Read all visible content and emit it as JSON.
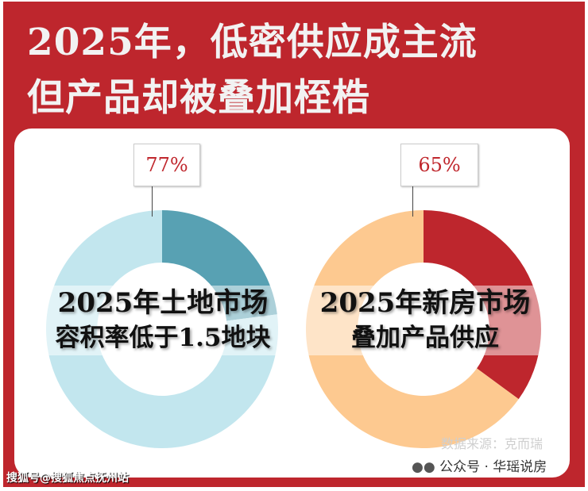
{
  "header": {
    "title_line1": "2025年，低密供应成主流",
    "title_line2": "但产品却被叠加桎梏"
  },
  "chart_data": [
    {
      "type": "pie",
      "variant": "donut",
      "title": "2025年土地市场容积率低于1.5地块",
      "title_line1": "2025年土地市场",
      "title_line2": "容积率低于1.5地块",
      "value_label": "77%",
      "values": [
        77,
        23
      ],
      "highlight": 77,
      "colors": [
        "#c2e6ee",
        "#58a1b3"
      ]
    },
    {
      "type": "pie",
      "variant": "donut",
      "title": "2025年新房市场叠加产品供应",
      "title_line1": "2025年新房市场",
      "title_line2": "叠加产品供应",
      "value_label": "65%",
      "values": [
        65,
        35
      ],
      "highlight": 65,
      "colors": [
        "#fdc990",
        "#be262d"
      ]
    }
  ],
  "footer": {
    "source": "数据来源：克而瑞",
    "wechat_icon": "wechat-icon",
    "wechat": "公众号 · 华瑶说房",
    "sohu": "搜狐号@搜狐焦点抚州站"
  }
}
